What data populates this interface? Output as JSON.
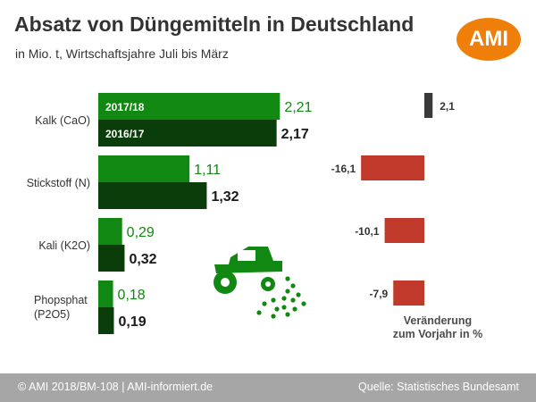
{
  "title": "Absatz von Düngemitteln in Deutschland",
  "subtitle": "in Mio. t, Wirtschaftsjahre Juli bis März",
  "logo_text": "AMI",
  "footer": {
    "left": "© AMI 2018/BM-108 | AMI-informiert.de",
    "right": "Quelle: Statistisches Bundesamt"
  },
  "change_label": {
    "line1": "Veränderung",
    "line2": "zum Vorjahr in %"
  },
  "colors": {
    "series_2017": "#118811",
    "series_2016": "#0b3d0b",
    "change_negative": "#c0392b",
    "change_positive": "#3a3a3a",
    "logo": "#f07f09",
    "footer": "#a6a6a6"
  },
  "icon": "tractor-spreading-icon",
  "chart_data": [
    {
      "type": "bar",
      "orientation": "horizontal",
      "categories": [
        "Kalk (CaO)",
        "Stickstoff (N)",
        "Kali (K2O)",
        "Phopsphat (P2O5)"
      ],
      "series": [
        {
          "name": "2017/18",
          "values": [
            2.21,
            1.11,
            0.29,
            0.18
          ],
          "labels": [
            "2,21",
            "1,11",
            "0,29",
            "0,18"
          ]
        },
        {
          "name": "2016/17",
          "values": [
            2.17,
            1.32,
            0.32,
            0.19
          ],
          "labels": [
            "2,17",
            "1,32",
            "0,32",
            "0,19"
          ]
        }
      ]
    },
    {
      "type": "bar",
      "orientation": "horizontal",
      "categories": [
        "Kalk (CaO)",
        "Stickstoff (N)",
        "Kali (K2O)",
        "Phopsphat (P2O5)"
      ],
      "values": [
        2.1,
        -16.1,
        -10.1,
        -7.9
      ],
      "labels": [
        "2,1",
        "-16,1",
        "-10,1",
        "-7,9"
      ]
    }
  ]
}
